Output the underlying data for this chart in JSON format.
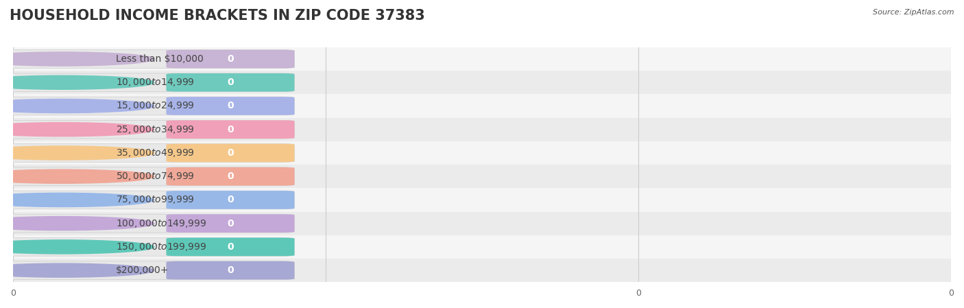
{
  "title": "HOUSEHOLD INCOME BRACKETS IN ZIP CODE 37383",
  "source": "Source: ZipAtlas.com",
  "categories": [
    "Less than $10,000",
    "$10,000 to $14,999",
    "$15,000 to $24,999",
    "$25,000 to $34,999",
    "$35,000 to $49,999",
    "$50,000 to $74,999",
    "$75,000 to $99,999",
    "$100,000 to $149,999",
    "$150,000 to $199,999",
    "$200,000+"
  ],
  "values": [
    0,
    0,
    0,
    0,
    0,
    0,
    0,
    0,
    0,
    0
  ],
  "bar_colors": [
    "#c8b4d4",
    "#6ecabd",
    "#a8b4e8",
    "#f0a0b8",
    "#f5c88a",
    "#f0a898",
    "#98b8e8",
    "#c4a8d8",
    "#5ec8b8",
    "#a8a8d4"
  ],
  "background_color": "#ffffff",
  "row_bg_even": "#f5f5f5",
  "row_bg_odd": "#ebebeb",
  "grid_color": "#cccccc",
  "title_fontsize": 15,
  "label_fontsize": 10,
  "tick_fontsize": 9,
  "source_fontsize": 8,
  "figsize": [
    14.06,
    4.49
  ]
}
